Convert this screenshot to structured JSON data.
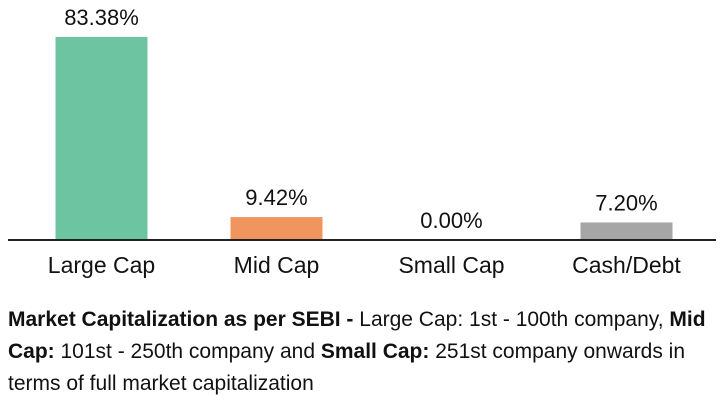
{
  "chart_data": {
    "type": "bar",
    "categories": [
      "Large Cap",
      "Mid Cap",
      "Small Cap",
      "Cash/Debt"
    ],
    "values": [
      83.38,
      9.42,
      0.0,
      7.2
    ],
    "value_labels": [
      "83.38%",
      "9.42%",
      "0.00%",
      "7.20%"
    ],
    "colors": [
      "#6cc5a0",
      "#f0955e",
      "#b0b0b0",
      "#a6a6a6"
    ],
    "ylim": [
      0,
      85
    ]
  },
  "footnote": [
    {
      "text": "Market Capitalization as per SEBI - ",
      "bold": true
    },
    {
      "text": "Large Cap",
      "bold": false
    },
    {
      "text": ": 1st - 100th company, ",
      "bold": false
    },
    {
      "text": "Mid Cap:",
      "bold": true
    },
    {
      "text": " 101st - 250th company and ",
      "bold": false
    },
    {
      "text": "Small Cap:",
      "bold": true
    },
    {
      "text": " 251st company onwards in terms of full market capitalization",
      "bold": false
    }
  ]
}
